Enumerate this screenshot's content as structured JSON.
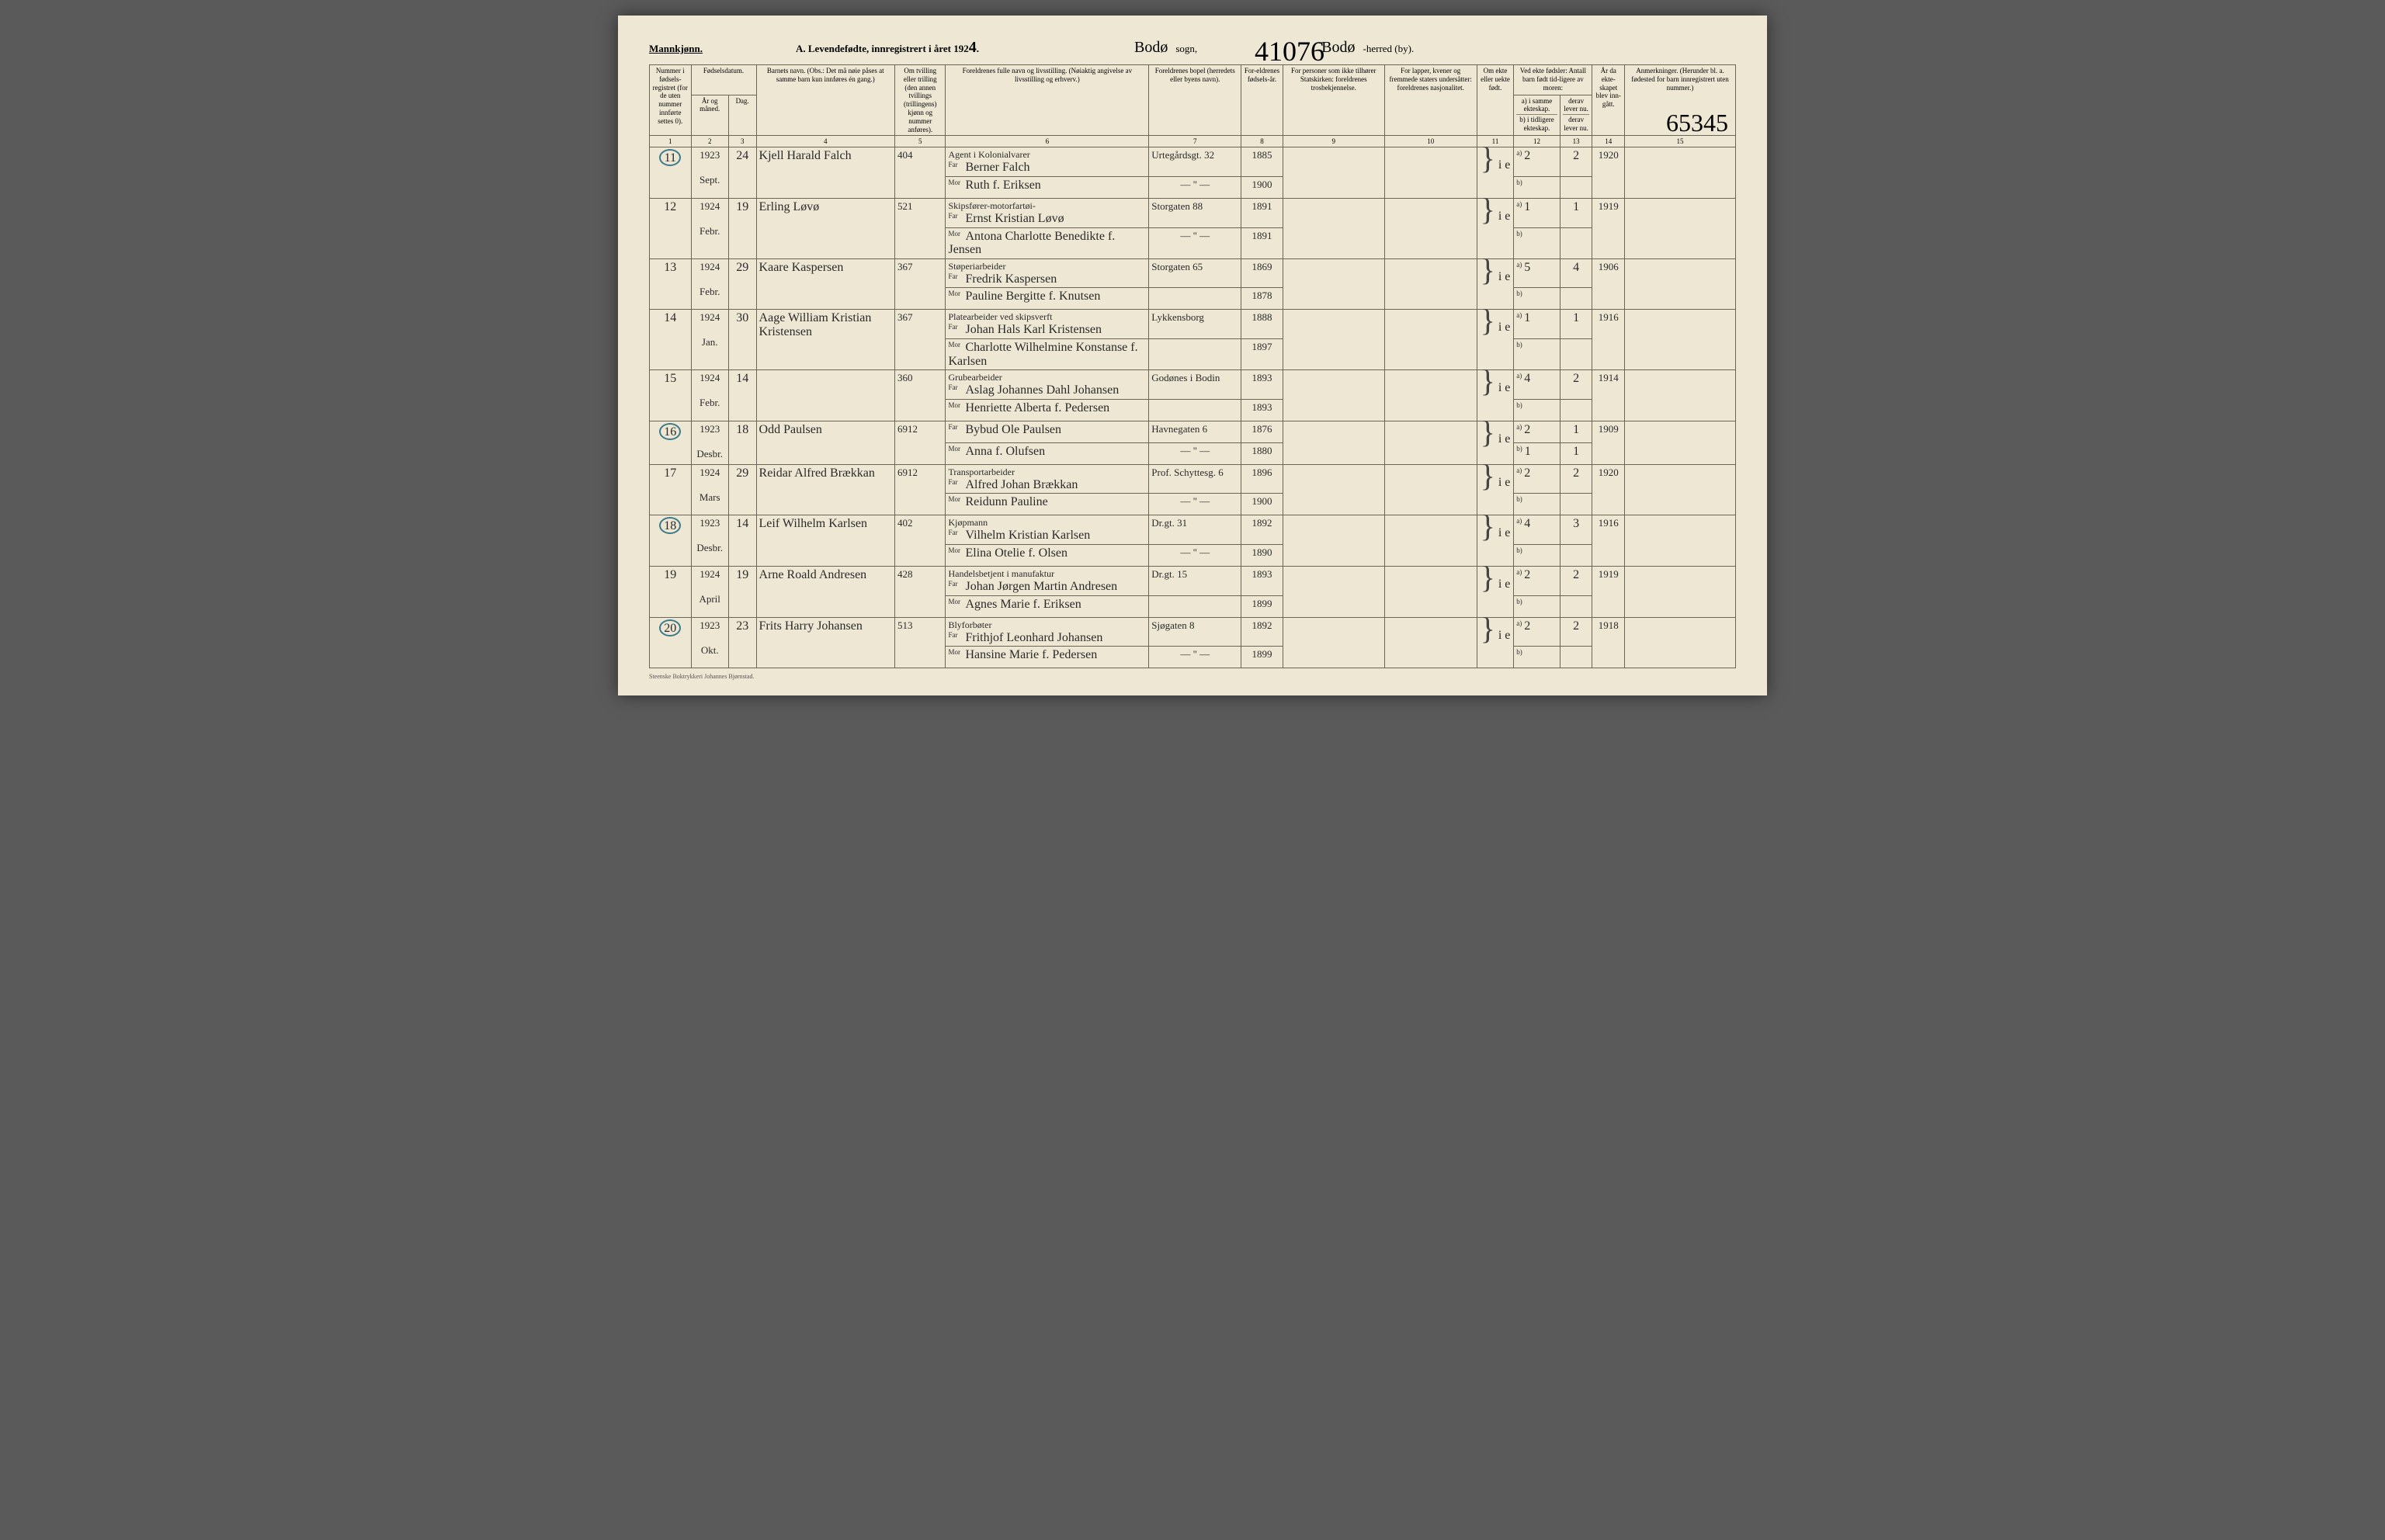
{
  "header": {
    "gender": "Mannkjønn.",
    "title": "A. Levendefødte, innregistrert i året 192",
    "year_digit": "4",
    "sogn_cursive": "Bodø",
    "sogn_label": "sogn,",
    "annotation": "41076",
    "herred_cursive": "Bodø",
    "herred_label": "-herred (by).",
    "side_annotation": "65345"
  },
  "columns": {
    "c1": "Nummer i fødsels-registret (for de uten nummer innførte settes 0).",
    "c2a": "Fødselsdatum.",
    "c2b": "År og måned.",
    "c2c": "Dag.",
    "c4": "Barnets navn. (Obs.: Det må nøie påses at samme barn kun innføres én gang.)",
    "c5": "Om tvilling eller trilling (den annen tvillings (trillingens) kjønn og nummer anføres).",
    "c6": "Foreldrenes fulle navn og livsstilling. (Nøiaktig angivelse av livsstilling og erhverv.)",
    "c7": "Foreldrenes bopel (herredets eller byens navn).",
    "c8": "For-eldrenes fødsels-år.",
    "c9": "For personer som ikke tilhører Statskirken: foreldrenes trosbekjennelse.",
    "c10": "For lapper, kvener og fremmede staters undersåtter: foreldrenes nasjonalitet.",
    "c11": "Om ekte eller uekte født.",
    "c12_h": "Ved ekte fødsler: Antall barn født tid-ligere av moren:",
    "c12a": "a) i samme ekteskap.",
    "c12b": "b) i tidligere ekteskap.",
    "c13a": "derav lever nu.",
    "c13b": "derav lever nu.",
    "c14": "År da ekte-skapet blev inn-gått.",
    "c15": "Anmerkninger. (Herunder bl. a. fødested for barn innregistrert uten nummer.)"
  },
  "nums": [
    "1",
    "2",
    "3",
    "4",
    "5",
    "6",
    "7",
    "8",
    "9",
    "10",
    "11",
    "12",
    "13",
    "14",
    "15"
  ],
  "rows": [
    {
      "n": "11",
      "circled": true,
      "yr": "1923",
      "mo": "Sept.",
      "day": "24",
      "name": "Kjell Harald Falch",
      "twin": "404",
      "occ": "Agent i Kolonialvarer",
      "far": "Berner Falch",
      "mor": "Ruth f. Eriksen",
      "addr": "Urtegårdsgt. 32",
      "addr2": "— \" —",
      "fyr": "1885",
      "myr": "1900",
      "ekte": "i e",
      "a": "2",
      "al": "2",
      "mar": "1920"
    },
    {
      "n": "12",
      "circled": false,
      "yr": "1924",
      "mo": "Febr.",
      "day": "19",
      "name": "Erling Løvø",
      "twin": "521",
      "occ": "Skipsfører-motorfartøi-",
      "far": "Ernst Kristian Løvø",
      "mor": "Antona Charlotte Benedikte f. Jensen",
      "addr": "Storgaten 88",
      "addr2": "— \" —",
      "fyr": "1891",
      "myr": "1891",
      "ekte": "i e",
      "a": "1",
      "al": "1",
      "mar": "1919"
    },
    {
      "n": "13",
      "circled": false,
      "yr": "1924",
      "mo": "Febr.",
      "day": "29",
      "name": "Kaare Kaspersen",
      "twin": "367",
      "occ": "Støperiarbeider",
      "far": "Fredrik Kaspersen",
      "mor": "Pauline Bergitte f. Knutsen",
      "addr": "Storgaten 65",
      "addr2": "",
      "fyr": "1869",
      "myr": "1878",
      "ekte": "i e",
      "a": "5",
      "al": "4",
      "mar": "1906"
    },
    {
      "n": "14",
      "circled": false,
      "yr": "1924",
      "mo": "Jan.",
      "day": "30",
      "name": "Aage William Kristian Kristensen",
      "twin": "367",
      "occ": "Platearbeider ved skipsverft",
      "far": "Johan Hals Karl Kristensen",
      "mor": "Charlotte Wilhelmine Konstanse f. Karlsen",
      "addr": "Lykkensborg",
      "addr2": "",
      "fyr": "1888",
      "myr": "1897",
      "ekte": "i e",
      "a": "1",
      "al": "1",
      "mar": "1916"
    },
    {
      "n": "15",
      "circled": false,
      "yr": "1924",
      "mo": "Febr.",
      "day": "14",
      "name": "",
      "twin": "360",
      "occ": "Grubearbeider",
      "far": "Aslag Johannes Dahl Johansen",
      "mor": "Henriette Alberta f. Pedersen",
      "addr": "Godønes i Bodin",
      "addr2": "",
      "fyr": "1893",
      "myr": "1893",
      "ekte": "i e",
      "a": "4",
      "al": "2",
      "mar": "1914"
    },
    {
      "n": "16",
      "circled": true,
      "yr": "1923",
      "mo": "Desbr.",
      "day": "18",
      "name": "Odd Paulsen",
      "twin": "6912",
      "occ": "",
      "far": "Bybud Ole Paulsen",
      "mor": "Anna f. Olufsen",
      "addr": "Havnegaten 6",
      "addr2": "— \" —",
      "fyr": "1876",
      "myr": "1880",
      "ekte": "i e",
      "a": "2",
      "al": "1",
      "mar": "1909",
      "b": "1",
      "bl": "1"
    },
    {
      "n": "17",
      "circled": false,
      "yr": "1924",
      "mo": "Mars",
      "day": "29",
      "name": "Reidar Alfred Brækkan",
      "twin": "6912",
      "occ": "Transportarbeider",
      "far": "Alfred Johan Brækkan",
      "mor": "Reidunn Pauline",
      "addr": "Prof. Schyttesg. 6",
      "addr2": "— \" —",
      "fyr": "1896",
      "myr": "1900",
      "ekte": "i e",
      "a": "2",
      "al": "2",
      "mar": "1920"
    },
    {
      "n": "18",
      "circled": true,
      "yr": "1923",
      "mo": "Desbr.",
      "day": "14",
      "name": "Leif Wilhelm Karlsen",
      "twin": "402",
      "occ": "Kjøpmann",
      "far": "Vilhelm Kristian Karlsen",
      "mor": "Elina Otelie f. Olsen",
      "addr": "Dr.gt. 31",
      "addr2": "— \" —",
      "fyr": "1892",
      "myr": "1890",
      "ekte": "i e",
      "a": "4",
      "al": "3",
      "mar": "1916"
    },
    {
      "n": "19",
      "circled": false,
      "yr": "1924",
      "mo": "April",
      "day": "19",
      "name": "Arne Roald Andresen",
      "twin": "428",
      "occ": "Handelsbetjent i manufaktur",
      "far": "Johan Jørgen Martin Andresen",
      "mor": "Agnes Marie f. Eriksen",
      "addr": "Dr.gt. 15",
      "addr2": "",
      "fyr": "1893",
      "myr": "1899",
      "ekte": "i e",
      "a": "2",
      "al": "2",
      "mar": "1919"
    },
    {
      "n": "20",
      "circled": true,
      "yr": "1923",
      "mo": "Okt.",
      "day": "23",
      "name": "Frits Harry Johansen",
      "twin": "513",
      "occ": "Blyforbøter",
      "far": "Frithjof Leonhard Johansen",
      "mor": "Hansine Marie f. Pedersen",
      "addr": "Sjøgaten 8",
      "addr2": "— \" —",
      "fyr": "1892",
      "myr": "1899",
      "ekte": "i e",
      "a": "2",
      "al": "2",
      "mar": "1918"
    }
  ],
  "footer": "Steenske Boktrykkeri Johannes Bjørnstad."
}
